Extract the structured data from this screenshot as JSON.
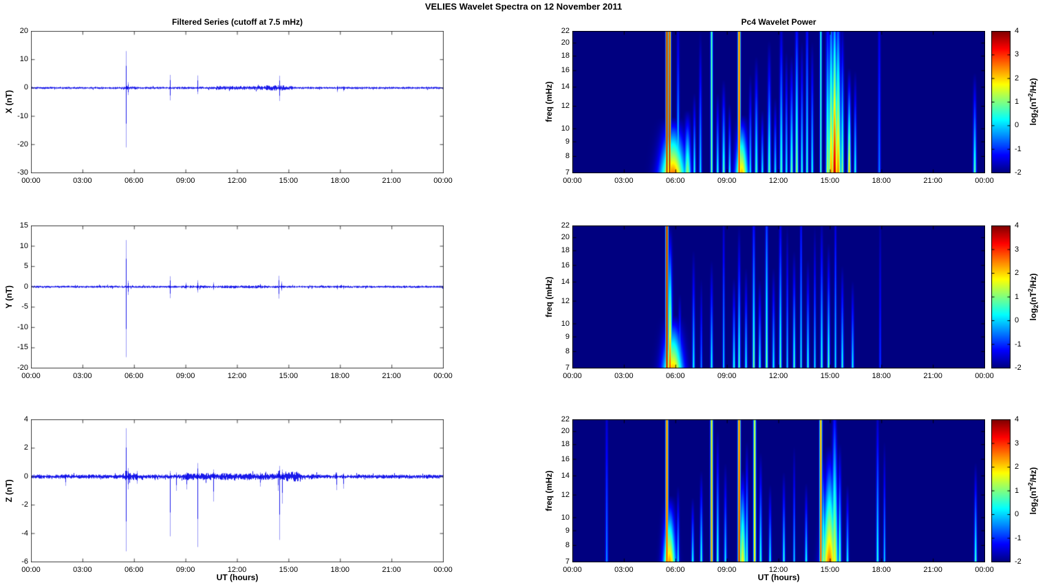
{
  "title": "VELIES Wavelet Spectra on 12 November  2011",
  "left_title": "Filtered Series (cutoff at 7.5 mHz)",
  "right_title": "Pc4 Wavelet Power",
  "x_axis": {
    "label": "UT (hours)",
    "ticks": [
      "00:00",
      "03:00",
      "06:00",
      "09:00",
      "12:00",
      "15:00",
      "18:00",
      "21:00",
      "00:00"
    ],
    "range_hours": [
      0,
      24
    ]
  },
  "colorbar": {
    "label": {
      "pre": "log",
      "sub": "2",
      "open": "(nT",
      "sup": "2",
      "close": "/Hz)"
    },
    "ticks": [
      4,
      3,
      2,
      1,
      0,
      -1,
      -2
    ],
    "range": [
      -2,
      4
    ],
    "colormap": "jet"
  },
  "colors": {
    "series_line": "#0000e8",
    "axis_left": "#3f3f3f",
    "axis_right": "#000000",
    "spectrogram_background": "#00008f"
  },
  "chart_data": [
    {
      "name": "X filtered series",
      "type": "line",
      "ylabel": "X (nT)",
      "ylim": [
        -30,
        20
      ],
      "yticks": [
        20,
        10,
        0,
        -10,
        -20,
        -30
      ],
      "grid": false,
      "seed": 11,
      "noise": {
        "base": 0.32,
        "segments": [
          {
            "t0": 10.8,
            "t1": 15.2,
            "amp": 0.55
          },
          {
            "t0": 13.6,
            "t1": 14.8,
            "amp": 0.75
          },
          {
            "t0": 5.3,
            "t1": 6.2,
            "amp": 0.5
          }
        ]
      },
      "spikes": [
        {
          "t": 5.5,
          "up": 13.0,
          "dn": -21.0
        },
        {
          "t": 5.62,
          "up": 2.0,
          "dn": -2.5
        },
        {
          "t": 8.1,
          "up": 4.6,
          "dn": -4.4
        },
        {
          "t": 9.7,
          "up": 4.4,
          "dn": -2.2
        },
        {
          "t": 14.45,
          "up": 4.3,
          "dn": -4.6
        },
        {
          "t": 17.8,
          "up": 0.8,
          "dn": -1.5
        },
        {
          "t": 18.15,
          "up": 0.6,
          "dn": -1.2
        }
      ]
    },
    {
      "name": "Y filtered series",
      "type": "line",
      "ylabel": "Y (nT)",
      "ylim": [
        -20,
        15
      ],
      "yticks": [
        15,
        10,
        5,
        0,
        -5,
        -10,
        -15,
        -20
      ],
      "grid": false,
      "seed": 23,
      "noise": {
        "base": 0.22,
        "segments": [
          {
            "t0": 11.0,
            "t1": 13.8,
            "amp": 0.3
          },
          {
            "t0": 8.9,
            "t1": 10.3,
            "amp": 0.28
          }
        ]
      },
      "spikes": [
        {
          "t": 5.5,
          "up": 11.5,
          "dn": -17.3
        },
        {
          "t": 5.62,
          "up": 1.5,
          "dn": -2.0
        },
        {
          "t": 8.1,
          "up": 2.6,
          "dn": -2.8
        },
        {
          "t": 9.0,
          "up": 1.0,
          "dn": -0.6
        },
        {
          "t": 9.7,
          "up": 1.6,
          "dn": -1.4
        },
        {
          "t": 10.6,
          "up": 1.1,
          "dn": -0.8
        },
        {
          "t": 14.4,
          "up": 2.7,
          "dn": -2.9
        },
        {
          "t": 14.55,
          "up": 1.3,
          "dn": -1.0
        },
        {
          "t": 17.8,
          "up": 0.5,
          "dn": -0.7
        },
        {
          "t": 18.15,
          "up": 0.4,
          "dn": -0.6
        }
      ]
    },
    {
      "name": "Z filtered series",
      "type": "line",
      "ylabel": "Z (nT)",
      "ylim": [
        -6,
        4
      ],
      "yticks": [
        4,
        2,
        0,
        -2,
        -4,
        -6
      ],
      "grid": false,
      "seed": 37,
      "noise": {
        "base": 0.12,
        "segments": [
          {
            "t0": 8.8,
            "t1": 15.8,
            "amp": 0.2
          },
          {
            "t0": 14.8,
            "t1": 15.7,
            "amp": 0.28
          },
          {
            "t0": 5.3,
            "t1": 6.2,
            "amp": 0.22
          },
          {
            "t0": 16.1,
            "t1": 16.6,
            "amp": 0.15
          }
        ]
      },
      "spikes": [
        {
          "t": 2.0,
          "up": 0.2,
          "dn": -0.65
        },
        {
          "t": 5.5,
          "up": 3.4,
          "dn": -5.25
        },
        {
          "t": 5.65,
          "up": 0.6,
          "dn": -0.9
        },
        {
          "t": 6.15,
          "up": 0.4,
          "dn": -0.5
        },
        {
          "t": 8.1,
          "up": 0.4,
          "dn": -4.2
        },
        {
          "t": 8.45,
          "up": 0.3,
          "dn": -1.0
        },
        {
          "t": 9.05,
          "up": 0.3,
          "dn": -0.9
        },
        {
          "t": 9.7,
          "up": 0.95,
          "dn": -4.95
        },
        {
          "t": 10.6,
          "up": 0.5,
          "dn": -1.75
        },
        {
          "t": 13.3,
          "up": 0.3,
          "dn": -0.7
        },
        {
          "t": 14.35,
          "up": 0.4,
          "dn": -1.0
        },
        {
          "t": 14.45,
          "up": 0.75,
          "dn": -4.45
        },
        {
          "t": 14.6,
          "up": 0.5,
          "dn": -1.9
        },
        {
          "t": 17.75,
          "up": 0.3,
          "dn": -0.95
        },
        {
          "t": 18.15,
          "up": 0.25,
          "dn": -0.85
        }
      ]
    },
    {
      "name": "X wavelet power",
      "type": "heatmap",
      "ylabel": "freq (mHz)",
      "flim": [
        7,
        22
      ],
      "yticks": [
        22,
        20,
        18,
        16,
        14,
        12,
        10,
        9,
        8,
        7
      ],
      "clim": [
        -2,
        4
      ],
      "background_power": -2,
      "streaks": [
        {
          "t": 5.5,
          "w": 0.045,
          "p0": 4.2,
          "p1": 4.2
        },
        {
          "t": 5.66,
          "w": 0.045,
          "p0": 4.2,
          "p1": 3.6
        },
        {
          "t": 5.85,
          "w": 0.2,
          "p0": 2.6,
          "p1": -9,
          "spread": 1.5
        },
        {
          "t": 6.15,
          "w": 0.05,
          "p0": 0.6,
          "p1": -1.6
        },
        {
          "t": 6.7,
          "w": 0.07,
          "p0": 1.2,
          "p1": -6,
          "spread": 1
        },
        {
          "t": 7.1,
          "w": 0.05,
          "p0": 0.6,
          "p1": -4
        },
        {
          "t": 7.45,
          "w": 0.05,
          "p0": 0.2,
          "p1": -2
        },
        {
          "t": 8.1,
          "w": 0.045,
          "p0": 1.2,
          "p1": 0.9
        },
        {
          "t": 8.45,
          "w": 0.05,
          "p0": 0.6,
          "p1": -4
        },
        {
          "t": 8.8,
          "w": 0.06,
          "p0": 0.9,
          "p1": -3.5
        },
        {
          "t": 9.15,
          "w": 0.05,
          "p0": 0.4,
          "p1": -4.5
        },
        {
          "t": 9.7,
          "w": 0.05,
          "p0": 3.4,
          "p1": 3.0
        },
        {
          "t": 9.85,
          "w": 0.1,
          "p0": 2.2,
          "p1": -8,
          "spread": 1.5
        },
        {
          "t": 10.35,
          "w": 0.05,
          "p0": 0.3,
          "p1": -3
        },
        {
          "t": 10.7,
          "w": 0.06,
          "p0": 0.8,
          "p1": -2.6
        },
        {
          "t": 11.05,
          "w": 0.05,
          "p0": 0.4,
          "p1": -5
        },
        {
          "t": 11.45,
          "w": 0.06,
          "p0": 0.9,
          "p1": -2.2
        },
        {
          "t": 11.8,
          "w": 0.05,
          "p0": 0.3,
          "p1": -4
        },
        {
          "t": 12.15,
          "w": 0.06,
          "p0": 0.8,
          "p1": -1.6
        },
        {
          "t": 12.45,
          "w": 0.05,
          "p0": 0.4,
          "p1": -2.4
        },
        {
          "t": 12.75,
          "w": 0.06,
          "p0": 1.0,
          "p1": -2.6
        },
        {
          "t": 13.05,
          "w": 0.06,
          "p0": 1.3,
          "p1": -1.2
        },
        {
          "t": 13.35,
          "w": 0.05,
          "p0": 0.6,
          "p1": -2.2
        },
        {
          "t": 13.65,
          "w": 0.05,
          "p0": 0.7,
          "p1": -1.2
        },
        {
          "t": 13.95,
          "w": 0.05,
          "p0": 0.5,
          "p1": -2.2
        },
        {
          "t": 14.45,
          "w": 0.04,
          "p0": 0.9,
          "p1": 0.6
        },
        {
          "t": 14.85,
          "w": 0.07,
          "p0": 1.6,
          "p1": -1.2
        },
        {
          "t": 15.05,
          "w": 0.08,
          "p0": 2.4,
          "p1": -0.6,
          "spread": 0.5
        },
        {
          "t": 15.25,
          "w": 0.07,
          "p0": 3.8,
          "p1": -0.3,
          "spread": 0.5
        },
        {
          "t": 15.45,
          "w": 0.08,
          "p0": 2.6,
          "p1": -0.7,
          "spread": 0.5
        },
        {
          "t": 15.7,
          "w": 0.06,
          "p0": 1.3,
          "p1": -1.8
        },
        {
          "t": 16.1,
          "w": 0.06,
          "p0": 2.3,
          "p1": -3.5
        },
        {
          "t": 16.45,
          "w": 0.05,
          "p0": 0.6,
          "p1": -3
        },
        {
          "t": 17.85,
          "w": 0.05,
          "p0": -0.4,
          "p1": -1.4
        },
        {
          "t": 23.4,
          "w": 0.06,
          "p0": 0.9,
          "p1": -3.2
        }
      ]
    },
    {
      "name": "Y wavelet power",
      "type": "heatmap",
      "ylabel": "freq (mHz)",
      "flim": [
        7,
        22
      ],
      "yticks": [
        22,
        20,
        18,
        16,
        14,
        12,
        10,
        9,
        8,
        7
      ],
      "clim": [
        -2,
        4
      ],
      "background_power": -2,
      "streaks": [
        {
          "t": 5.5,
          "w": 0.05,
          "p0": 4.2,
          "p1": 4.0
        },
        {
          "t": 5.68,
          "w": 0.08,
          "p0": 3.0,
          "p1": -2
        },
        {
          "t": 5.85,
          "w": 0.16,
          "p0": 2.2,
          "p1": -9,
          "spread": 1.5
        },
        {
          "t": 6.25,
          "w": 0.05,
          "p0": 0.2,
          "p1": -4
        },
        {
          "t": 7.05,
          "w": 0.05,
          "p0": 0.4,
          "p1": -2.5
        },
        {
          "t": 7.5,
          "w": 0.04,
          "p0": -0.3,
          "p1": -3
        },
        {
          "t": 8.1,
          "w": 0.05,
          "p0": 0.5,
          "p1": -2.8
        },
        {
          "t": 8.8,
          "w": 0.04,
          "p0": 0.2,
          "p1": -1.6
        },
        {
          "t": 9.4,
          "w": 0.05,
          "p0": 0.6,
          "p1": -3.5
        },
        {
          "t": 9.7,
          "w": 0.05,
          "p0": 0.8,
          "p1": -2
        },
        {
          "t": 10.1,
          "w": 0.05,
          "p0": 0.4,
          "p1": -3
        },
        {
          "t": 10.55,
          "w": 0.05,
          "p0": 1.1,
          "p1": -1.2
        },
        {
          "t": 10.9,
          "w": 0.05,
          "p0": 0.5,
          "p1": -3.5
        },
        {
          "t": 11.3,
          "w": 0.05,
          "p0": 1.2,
          "p1": -0.8
        },
        {
          "t": 11.7,
          "w": 0.05,
          "p0": 0.4,
          "p1": -3
        },
        {
          "t": 12.1,
          "w": 0.05,
          "p0": 0.9,
          "p1": -1.4
        },
        {
          "t": 12.5,
          "w": 0.04,
          "p0": 0.2,
          "p1": -2
        },
        {
          "t": 12.9,
          "w": 0.05,
          "p0": 0.8,
          "p1": -2.6
        },
        {
          "t": 13.3,
          "w": 0.04,
          "p0": 0.5,
          "p1": -1.2
        },
        {
          "t": 13.7,
          "w": 0.05,
          "p0": 0.6,
          "p1": -2.8
        },
        {
          "t": 14.1,
          "w": 0.04,
          "p0": 0.3,
          "p1": -2
        },
        {
          "t": 14.5,
          "w": 0.05,
          "p0": 0.7,
          "p1": -1.8
        },
        {
          "t": 14.9,
          "w": 0.05,
          "p0": 0.9,
          "p1": -2.4
        },
        {
          "t": 15.3,
          "w": 0.04,
          "p0": 0.4,
          "p1": -1.4
        },
        {
          "t": 15.7,
          "w": 0.05,
          "p0": 0.6,
          "p1": -3
        },
        {
          "t": 16.3,
          "w": 0.05,
          "p0": 0.4,
          "p1": -3.5
        },
        {
          "t": 17.9,
          "w": 0.04,
          "p0": -0.8,
          "p1": -1.8
        }
      ]
    },
    {
      "name": "Z wavelet power",
      "type": "heatmap",
      "ylabel": "freq (mHz)",
      "flim": [
        7,
        22
      ],
      "yticks": [
        22,
        20,
        18,
        16,
        14,
        12,
        10,
        9,
        8,
        7
      ],
      "clim": [
        -2,
        4
      ],
      "background_power": -2,
      "streaks": [
        {
          "t": 2.0,
          "w": 0.05,
          "p0": -0.3,
          "p1": -1.5
        },
        {
          "t": 5.5,
          "w": 0.05,
          "p0": 3.4,
          "p1": 3.0
        },
        {
          "t": 5.65,
          "w": 0.1,
          "p0": 2.4,
          "p1": -7,
          "spread": 1.5
        },
        {
          "t": 6.15,
          "w": 0.05,
          "p0": 0.3,
          "p1": -4
        },
        {
          "t": 7.0,
          "w": 0.05,
          "p0": 0.5,
          "p1": -5
        },
        {
          "t": 7.5,
          "w": 0.05,
          "p0": 0.7,
          "p1": -3.5
        },
        {
          "t": 8.1,
          "w": 0.05,
          "p0": 2.6,
          "p1": 2.0
        },
        {
          "t": 8.45,
          "w": 0.05,
          "p0": 0.8,
          "p1": -2.2
        },
        {
          "t": 8.9,
          "w": 0.05,
          "p0": 0.3,
          "p1": -3
        },
        {
          "t": 9.7,
          "w": 0.05,
          "p0": 3.8,
          "p1": 3.0
        },
        {
          "t": 9.9,
          "w": 0.07,
          "p0": 1.8,
          "p1": -4,
          "spread": 1
        },
        {
          "t": 10.15,
          "w": 0.05,
          "p0": 0.8,
          "p1": -2.5
        },
        {
          "t": 10.6,
          "w": 0.05,
          "p0": 2.2,
          "p1": 1.6
        },
        {
          "t": 10.95,
          "w": 0.05,
          "p0": 0.7,
          "p1": -2.8
        },
        {
          "t": 11.5,
          "w": 0.05,
          "p0": 0.4,
          "p1": -4
        },
        {
          "t": 12.3,
          "w": 0.05,
          "p0": 0.6,
          "p1": -3.5
        },
        {
          "t": 12.9,
          "w": 0.04,
          "p0": 0.2,
          "p1": -2.5
        },
        {
          "t": 13.6,
          "w": 0.05,
          "p0": 0.5,
          "p1": -4
        },
        {
          "t": 14.45,
          "w": 0.05,
          "p0": 3.2,
          "p1": 2.6
        },
        {
          "t": 14.6,
          "w": 0.06,
          "p0": 1.5,
          "p1": -3
        },
        {
          "t": 14.95,
          "w": 0.1,
          "p0": 2.6,
          "p1": -3,
          "spread": 2
        },
        {
          "t": 15.25,
          "w": 0.07,
          "p0": 1.8,
          "p1": -1.2,
          "spread": 1
        },
        {
          "t": 15.55,
          "w": 0.06,
          "p0": 1.0,
          "p1": -2.6
        },
        {
          "t": 16.0,
          "w": 0.05,
          "p0": 0.4,
          "p1": -4
        },
        {
          "t": 17.75,
          "w": 0.05,
          "p0": 0.6,
          "p1": -1.6
        },
        {
          "t": 18.15,
          "w": 0.04,
          "p0": 0.2,
          "p1": -2.4
        },
        {
          "t": 23.45,
          "w": 0.05,
          "p0": 0.8,
          "p1": -3.2
        }
      ]
    }
  ]
}
